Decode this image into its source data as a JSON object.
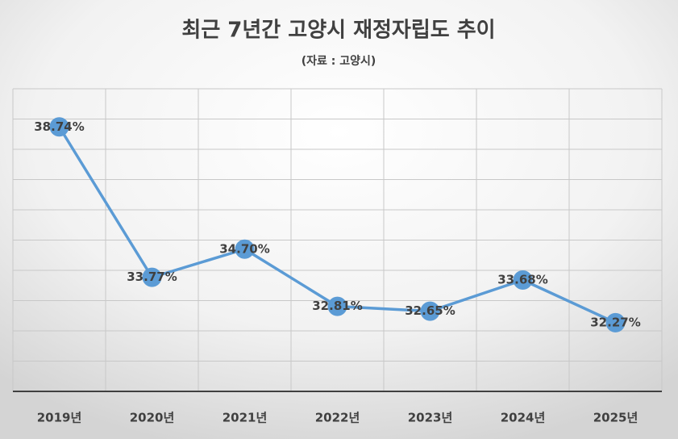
{
  "chart_data": {
    "type": "line",
    "title": "최근 7년간 고양시 재정자립도 추이",
    "subtitle": "(자료 : 고양시)",
    "categories": [
      "2019년",
      "2020년",
      "2021년",
      "2022년",
      "2023년",
      "2024년",
      "2025년"
    ],
    "values": [
      38.74,
      33.77,
      34.7,
      32.81,
      32.65,
      33.68,
      32.27
    ],
    "value_labels": [
      "38.74%",
      "33.77%",
      "34.70%",
      "32.81%",
      "32.65%",
      "33.68%",
      "32.27%"
    ],
    "color": "#5b9bd5",
    "ylim": [
      30,
      40
    ],
    "yticks": [
      30,
      31,
      32,
      33,
      34,
      35,
      36,
      37,
      38,
      39,
      40
    ],
    "grid": true
  }
}
